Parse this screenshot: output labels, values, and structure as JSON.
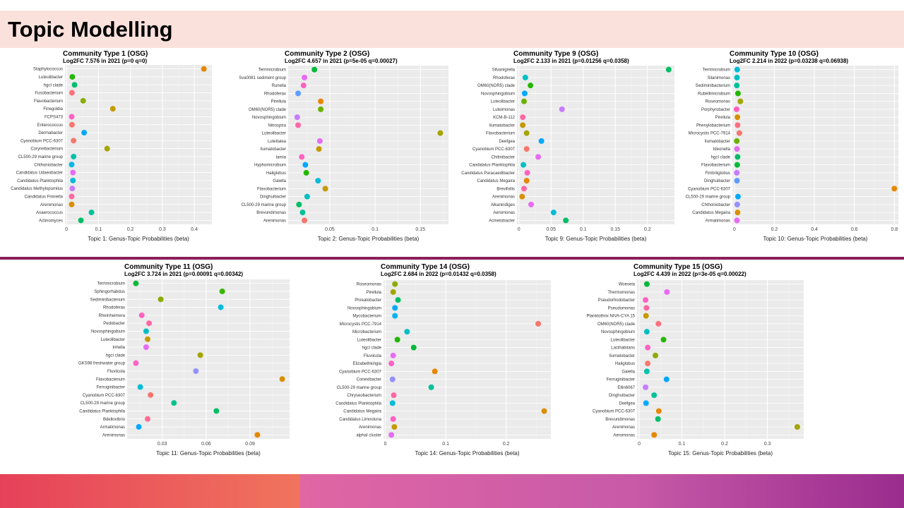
{
  "slide": {
    "title": "Topic Modelling"
  },
  "chart_data": [
    {
      "type": "scatter",
      "title": "Community Type 1 (OSG)",
      "subtitle": "Log2FC 7.576 in 2021 (p=0 q=0)",
      "xlabel": "Topic 1: Genus-Topic Probabilities (beta)",
      "xlim": [
        -0.005,
        0.455
      ],
      "xticks": [
        0,
        0.1,
        0.2,
        0.3,
        0.4
      ],
      "categories": [
        "Staphylococcus",
        "Luteolibacter",
        "hgcI clade",
        "Fusobacterium",
        "Flavobacterium",
        "Finegoldia",
        "FCPS473",
        "Enterococcus",
        "Dermabacter",
        "Cyanobium PCC-6307",
        "Corynebacterium",
        "CL500-29 marine group",
        "Chthoniobacter",
        "Candidatus Udaeobacter",
        "Candidatus Planktophila",
        "Candidatus Methylopumilus",
        "Candidatus Finniella",
        "Arenimonas",
        "Anaerococcus",
        "Actinomyces"
      ],
      "values": [
        0.43,
        0.018,
        0.025,
        0.017,
        0.052,
        0.145,
        0.016,
        0.017,
        0.055,
        0.022,
        0.127,
        0.022,
        0.016,
        0.02,
        0.02,
        0.018,
        0.016,
        0.016,
        0.078,
        0.045
      ],
      "colors": [
        "#E58700",
        "#24B700",
        "#00BE70",
        "#FC717F",
        "#8CAB00",
        "#C49A00",
        "#FF61C3",
        "#F8766D",
        "#00A9FF",
        "#F8766D",
        "#A3A500",
        "#00C1AA",
        "#00B8E5",
        "#E76BF3",
        "#00BCD8",
        "#C77CFF",
        "#FF67A4",
        "#D89000",
        "#00C19A",
        "#00BE67"
      ],
      "grid": true
    },
    {
      "type": "scatter",
      "title": "Community Type 2 (OSG)",
      "subtitle": "Log2FC 4.657 in 2021 (p=5e-05 q=0.00027)",
      "xlabel": "Topic 2: Genus-Topic Probabilities (beta)",
      "xlim": [
        0.004,
        0.181
      ],
      "xticks": [
        0.05,
        0.1,
        0.15
      ],
      "categories": [
        "Terrimicrobium",
        "Sva0081 sediment group",
        "Runella",
        "Rhodoferax",
        "Pirellula",
        "OM60(NOR5) clade",
        "Novosphingobium",
        "Nitrospira",
        "Luteolibacter",
        "Luteitalea",
        "Ilumatobacter",
        "Iamia",
        "Hyphomicrobium",
        "Haliglobus",
        "Gaiella",
        "Flavobacterium",
        "Dinghuibacter",
        "CL500-29 marine group",
        "Brevundimonas",
        "Arenimonas"
      ],
      "values": [
        0.033,
        0.022,
        0.021,
        0.015,
        0.04,
        0.04,
        0.014,
        0.015,
        0.172,
        0.039,
        0.038,
        0.019,
        0.023,
        0.024,
        0.037,
        0.045,
        0.025,
        0.016,
        0.02,
        0.022
      ],
      "colors": [
        "#00BA38",
        "#E76BF3",
        "#FF61C3",
        "#619CFF",
        "#E58700",
        "#6BB100",
        "#C77CFF",
        "#FF67A4",
        "#A3A500",
        "#E76BF3",
        "#C49A00",
        "#FF61C3",
        "#00A9FF",
        "#24B700",
        "#00BCD8",
        "#C49A00",
        "#00BFC4",
        "#00BE67",
        "#00C19A",
        "#F8766D"
      ],
      "grid": true
    },
    {
      "type": "scatter",
      "title": "Community Type 9 (OSG)",
      "subtitle": "Log2FC 2.133 in 2021 (p=0.01256 q=0.0358)",
      "xlabel": "Topic 9: Genus-Topic Probabilities (beta)",
      "xlim": [
        -0.003,
        0.242
      ],
      "xticks": [
        0,
        0.05,
        0.1,
        0.15,
        0.2
      ],
      "categories": [
        "Silvanigrella",
        "Rhodoferax",
        "OM60(NOR5) clade",
        "Novosphingobium",
        "Luteolibacter",
        "Luteimonas",
        "KCM-B-112",
        "Ilumatobacter",
        "Flavobacterium",
        "Deefgea",
        "Cyanobium PCC-6307",
        "Chitinibacter",
        "Candidatus Planktophila",
        "Candidatus Paracaedibacter",
        "Candidatus Megaira",
        "Brevifollis",
        "Arenimonas",
        "Alkanindiges",
        "Aeromonas",
        "Acinetobacter"
      ],
      "values": [
        0.233,
        0.01,
        0.018,
        0.009,
        0.008,
        0.067,
        0.006,
        0.006,
        0.012,
        0.035,
        0.012,
        0.03,
        0.007,
        0.013,
        0.012,
        0.008,
        0.005,
        0.019,
        0.054,
        0.073
      ],
      "colors": [
        "#00BE67",
        "#00BFC4",
        "#24B700",
        "#00A9FF",
        "#6BB100",
        "#C77CFF",
        "#FF67A4",
        "#C49A00",
        "#A3A500",
        "#00A9FF",
        "#F8766D",
        "#E76BF3",
        "#00BFC4",
        "#FF61C3",
        "#E58700",
        "#FF67A4",
        "#D89000",
        "#E76BF3",
        "#00BCD8",
        "#00BE67"
      ],
      "grid": true
    },
    {
      "type": "scatter",
      "title": "Community Type 10 (OSG)",
      "subtitle": "Log2FC 2.214 in 2022 (p=0.03238 q=0.06938)",
      "xlabel": "Topic 10: Genus-Topic Probabilities (beta)",
      "xlim": [
        -0.01,
        0.82
      ],
      "xticks": [
        0,
        0.2,
        0.4,
        0.6,
        0.8
      ],
      "categories": [
        "Terrimicrobium",
        "Silanimonas",
        "Sediminibacterium",
        "Rubellimicrobium",
        "Roseomonas",
        "Porphyrobacter",
        "Pirellula",
        "Phenylobacterium",
        "Microcystis PCC-7914",
        "Ilumatobacter",
        "Ideonella",
        "hgcI clade",
        "Flavobacterium",
        "Fimbriiglobus",
        "Dinghuibacter",
        "Cyanobium PCC-6307",
        "CL500-29 marine group",
        "Chthoniobacter",
        "Candidatus Megaira",
        "Armatimonas"
      ],
      "values": [
        0.014,
        0.013,
        0.012,
        0.018,
        0.03,
        0.011,
        0.015,
        0.016,
        0.025,
        0.012,
        0.013,
        0.016,
        0.014,
        0.012,
        0.013,
        0.8,
        0.018,
        0.014,
        0.016,
        0.013
      ],
      "colors": [
        "#00BCD8",
        "#00BFC4",
        "#00C19A",
        "#24B700",
        "#A3A500",
        "#FF61C3",
        "#D89000",
        "#FC717F",
        "#F8766D",
        "#6BB100",
        "#E76BF3",
        "#00BE67",
        "#00BA38",
        "#C77CFF",
        "#619CFF",
        "#E58700",
        "#00A9FF",
        "#9590FF",
        "#D89000",
        "#E76BF3"
      ],
      "grid": true
    },
    {
      "type": "scatter",
      "title": "Community Type 11 (OSG)",
      "subtitle": "Log2FC 3.724 in 2021 (p=0.00091 q=0.00342)",
      "xlabel": "Topic 11: Genus-Topic Probabilities (beta)",
      "xlim": [
        0.006,
        0.117
      ],
      "xticks": [
        0.03,
        0.06,
        0.09
      ],
      "categories": [
        "Terrimicrobium",
        "Sphingorhabdus",
        "Sediminibacterium",
        "Rhodoferax",
        "Rheinheimera",
        "Pedobacter",
        "Novosphingobium",
        "Luteolibacter",
        "Inhella",
        "hgcI clade",
        "GKS98 freshwater group",
        "Fluviicola",
        "Flavobacterium",
        "Ferruginibacter",
        "Cyanobium PCC-6307",
        "CL500-29 marine group",
        "Candidatus Planktophila",
        "Bdellovibrio",
        "Armatimonas",
        "Arenimonas"
      ],
      "values": [
        0.012,
        0.071,
        0.029,
        0.07,
        0.016,
        0.021,
        0.019,
        0.02,
        0.019,
        0.056,
        0.012,
        0.053,
        0.112,
        0.015,
        0.022,
        0.038,
        0.067,
        0.02,
        0.014,
        0.095
      ],
      "colors": [
        "#00BA38",
        "#39B600",
        "#8CAB00",
        "#00BCD8",
        "#FF61C3",
        "#FF67A4",
        "#00BFC4",
        "#C49A00",
        "#E76BF3",
        "#A3A500",
        "#FF61C3",
        "#9590FF",
        "#D89000",
        "#00BCD8",
        "#F8766D",
        "#00C08B",
        "#00BE67",
        "#FF6C91",
        "#00A9FF",
        "#E58700"
      ],
      "grid": true
    },
    {
      "type": "scatter",
      "title": "Community Type 14 (OSG)",
      "subtitle": "Log2FC 2.684 in 2022 (p=0.01432 q=0.0358)",
      "xlabel": "Topic 14: Genus-Topic Probabilities (beta)",
      "xlim": [
        -0.003,
        0.274
      ],
      "xticks": [
        0,
        0.1,
        0.2
      ],
      "categories": [
        "Roseomonas",
        "Pirellula",
        "Phreatobacter",
        "Novosphingobium",
        "Mycobacterium",
        "Microcystis PCC-7914",
        "Microbacterium",
        "Luteolibacter",
        "hgcI clade",
        "Fluviicola",
        "Elizabethkingia",
        "Cyanobium PCC-6307",
        "Conexibacter",
        "CL500-29 marine group",
        "Chryseobacterium",
        "Candidatus Planktophila",
        "Candidatus Megaira",
        "Candidatus Limnoluna",
        "Arenimonas",
        "alphaI cluster"
      ],
      "values": [
        0.016,
        0.013,
        0.021,
        0.016,
        0.016,
        0.253,
        0.036,
        0.02,
        0.047,
        0.013,
        0.01,
        0.082,
        0.012,
        0.076,
        0.014,
        0.012,
        0.263,
        0.013,
        0.015,
        0.01
      ],
      "colors": [
        "#8CAB00",
        "#A3A500",
        "#00BE67",
        "#00A9FF",
        "#00B4F0",
        "#F8766D",
        "#00BFC4",
        "#24B700",
        "#00BA38",
        "#E76BF3",
        "#FF61C3",
        "#E58700",
        "#9590FF",
        "#00C19A",
        "#FF67A4",
        "#00BCD8",
        "#D89000",
        "#FF61C3",
        "#C49A00",
        "#E76BF3"
      ],
      "grid": true
    },
    {
      "type": "scatter",
      "title": "Community Type 15 (OSG)",
      "subtitle": "Log2FC 4.439 in 2022 (p=3e-05 q=0.00022)",
      "xlabel": "Topic 15: Genus-Topic Probabilities (beta)",
      "xlim": [
        -0.005,
        0.385
      ],
      "xticks": [
        0,
        0.1,
        0.2,
        0.3
      ],
      "categories": [
        "Woeseia",
        "Thermomonas",
        "Pseudorhodobacter",
        "Pseudomonas",
        "Planktothrix NIVA-CYA 15",
        "OM60(NOR5) clade",
        "Novosphingobium",
        "Luteolibacter",
        "Lacihabitans",
        "Ilumatobacter",
        "Haliglobus",
        "Gaiella",
        "Ferruginibacter",
        "Ellin6067",
        "Dinghuibacter",
        "Deefgea",
        "Cyanobium PCC-6307",
        "Brevundimonas",
        "Arenimonas",
        "Aeromonas"
      ],
      "values": [
        0.018,
        0.065,
        0.015,
        0.017,
        0.016,
        0.045,
        0.018,
        0.057,
        0.02,
        0.038,
        0.02,
        0.018,
        0.064,
        0.015,
        0.035,
        0.016,
        0.046,
        0.044,
        0.37,
        0.035
      ],
      "colors": [
        "#00BA38",
        "#E76BF3",
        "#FF61C3",
        "#FF67A4",
        "#C49A00",
        "#FC717F",
        "#00BFC4",
        "#24B700",
        "#FF61C3",
        "#8CAB00",
        "#F8766D",
        "#00C1AA",
        "#00A9FF",
        "#C77CFF",
        "#00C19A",
        "#00A9FF",
        "#E58700",
        "#00BE67",
        "#A3A500",
        "#E58700"
      ],
      "grid": true
    }
  ]
}
